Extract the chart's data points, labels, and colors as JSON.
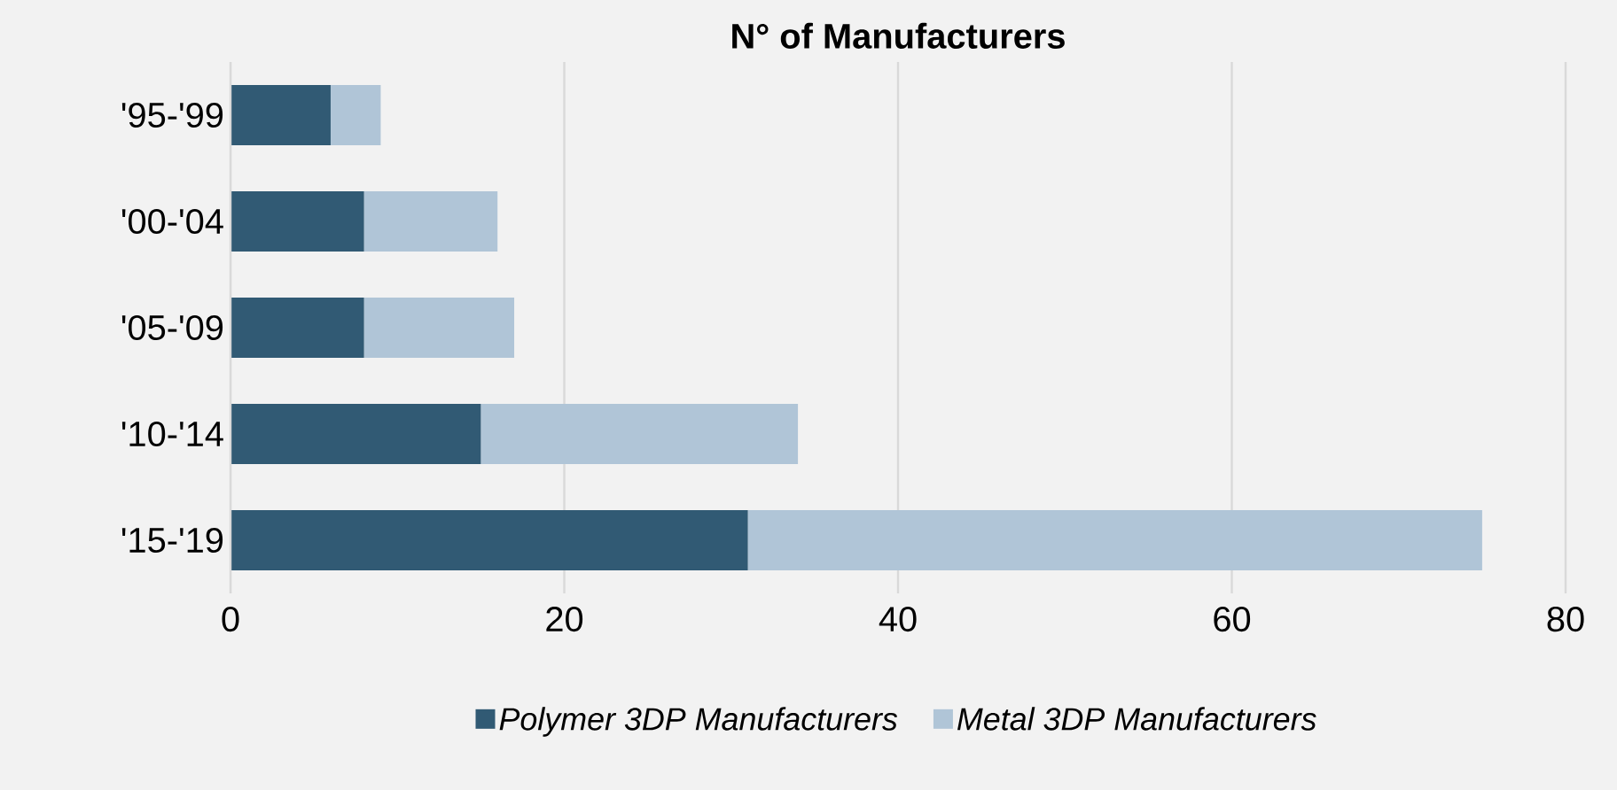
{
  "chart_data": {
    "type": "bar",
    "orientation": "horizontal",
    "stacked": true,
    "title": "N° of Manufacturers",
    "categories": [
      "'95-'99",
      "'00-'04",
      "'05-'09",
      "'10-'14",
      "'15-'19"
    ],
    "series": [
      {
        "name": "Polymer 3DP Manufacturers",
        "color": "#315a74",
        "values": [
          6,
          8,
          8,
          15,
          31
        ]
      },
      {
        "name": "Metal 3DP Manufacturers",
        "color": "#b0c5d7",
        "values": [
          3,
          8,
          9,
          19,
          44
        ]
      }
    ],
    "xlim": [
      0,
      80
    ],
    "xticks": [
      0,
      20,
      40,
      60,
      80
    ],
    "grid": "x",
    "legend": "bottom"
  }
}
